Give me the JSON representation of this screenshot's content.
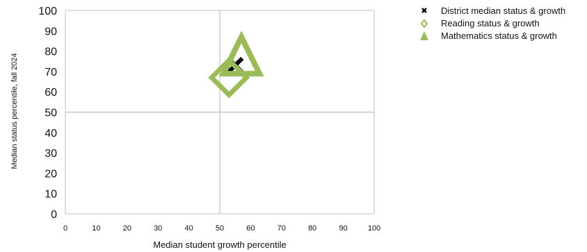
{
  "chart_data": {
    "type": "scatter",
    "xlabel": "Median student growth percentile",
    "ylabel": "Median status percentile, fall 2024",
    "xlim": [
      0,
      100
    ],
    "ylim": [
      0,
      100
    ],
    "x_ticks": [
      "0",
      "10",
      "20",
      "30",
      "40",
      "50",
      "60",
      "70",
      "80",
      "90",
      "100"
    ],
    "y_ticks": [
      "0",
      "10",
      "20",
      "30",
      "40",
      "50",
      "60",
      "70",
      "80",
      "90",
      "100"
    ],
    "reference_lines": {
      "x": 50,
      "y": 50
    },
    "grid": false,
    "legend_position": "top-right",
    "series": [
      {
        "name": "District median status & growth",
        "marker": "x",
        "color": "#000000",
        "points": [
          {
            "x": 55,
            "y": 73
          }
        ]
      },
      {
        "name": "Reading status & growth",
        "marker": "diamond",
        "color": "#9bbb59",
        "points": [
          {
            "x": 53,
            "y": 67
          }
        ]
      },
      {
        "name": "Mathematics status & growth",
        "marker": "triangle",
        "color": "#9bbb59",
        "points": [
          {
            "x": 57,
            "y": 74
          }
        ]
      }
    ]
  }
}
